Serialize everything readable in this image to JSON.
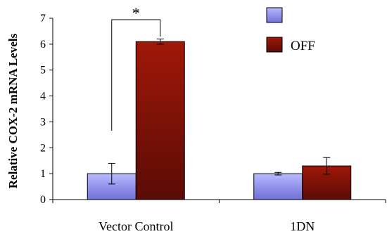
{
  "chart_data": {
    "type": "bar",
    "title": "",
    "xlabel": "",
    "ylabel": "Relative COX-2 mRNA Levels",
    "ylim": [
      0,
      7
    ],
    "yticks": [
      "0",
      "1",
      "2",
      "3",
      "4",
      "5",
      "6",
      "7"
    ],
    "categories": [
      "Vector Control",
      "1DN"
    ],
    "series": [
      {
        "name": "",
        "color": "#8c8ce8",
        "values": [
          1.0,
          1.0
        ],
        "errors": [
          0.4,
          0.05
        ]
      },
      {
        "name": "OFF",
        "color": "#8b1a10",
        "values": [
          6.1,
          1.3
        ],
        "errors": [
          0.1,
          0.32
        ]
      }
    ],
    "annotations": [
      {
        "text": "*"
      }
    ],
    "legend_position": "top-right",
    "grid": false
  }
}
